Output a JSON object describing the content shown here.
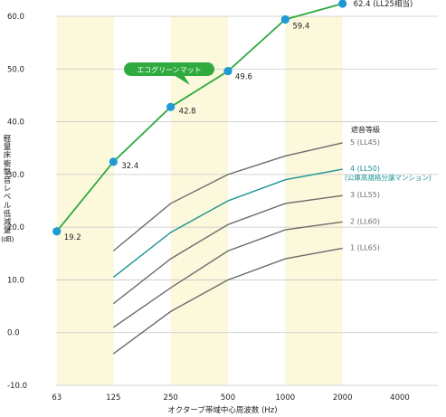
{
  "chart_data": {
    "type": "line",
    "xlabel": "オクターブ帯域中心周波数 (Hz)",
    "ylabel": "軽量床衝撃音レベル低減量",
    "ylabel_unit": "(dB)",
    "x_tick_labels": [
      "63",
      "125",
      "250",
      "500",
      "1000",
      "2000",
      "4000"
    ],
    "y_tick_labels": [
      "-10.0",
      "0.0",
      "10.0",
      "20.0",
      "30.0",
      "40.0",
      "50.0",
      "60.0"
    ],
    "ylim": [
      -10,
      62
    ],
    "grid": "horizontal",
    "legend_title": "遮音等級",
    "highlighted_bands_hz": [
      63,
      250,
      1000
    ],
    "colors": {
      "product": "#2eaa3f",
      "marker": "#1f9ad6",
      "jis_line": "#1a9292",
      "grade_line": "#6c6c6c",
      "band": "#fbf8dc",
      "callout": "#2eaa3f",
      "grid": "#c8c8c8"
    },
    "product_series": {
      "name": "エコグリーンマット",
      "x": [
        63,
        125,
        250,
        500,
        1000,
        2000
      ],
      "values": [
        19.2,
        32.4,
        42.8,
        49.6,
        59.4,
        62.4
      ],
      "value_labels": [
        "19.2",
        "32.4",
        "42.8",
        "49.6",
        "59.4",
        "62.4 (LL25相当)"
      ]
    },
    "grade_series": [
      {
        "name": "5 (LL45)",
        "x": [
          125,
          250,
          500,
          1000,
          2000
        ],
        "values": [
          15.5,
          24.5,
          30,
          33.5,
          36
        ]
      },
      {
        "name": "4 (LL50)",
        "note": "(公庫高規格分譲マンション)",
        "x": [
          125,
          250,
          500,
          1000,
          2000
        ],
        "values": [
          10.5,
          19,
          25,
          29,
          31
        ]
      },
      {
        "name": "3 (LL55)",
        "x": [
          125,
          250,
          500,
          1000,
          2000
        ],
        "values": [
          5.5,
          14,
          20.5,
          24.5,
          26
        ]
      },
      {
        "name": "2 (LL60)",
        "x": [
          125,
          250,
          500,
          1000,
          2000
        ],
        "values": [
          1,
          8.5,
          15.5,
          19.5,
          21
        ]
      },
      {
        "name": "1 (LL65)",
        "x": [
          125,
          250,
          500,
          1000,
          2000
        ],
        "values": [
          -4,
          4,
          10,
          14,
          16
        ]
      }
    ]
  }
}
